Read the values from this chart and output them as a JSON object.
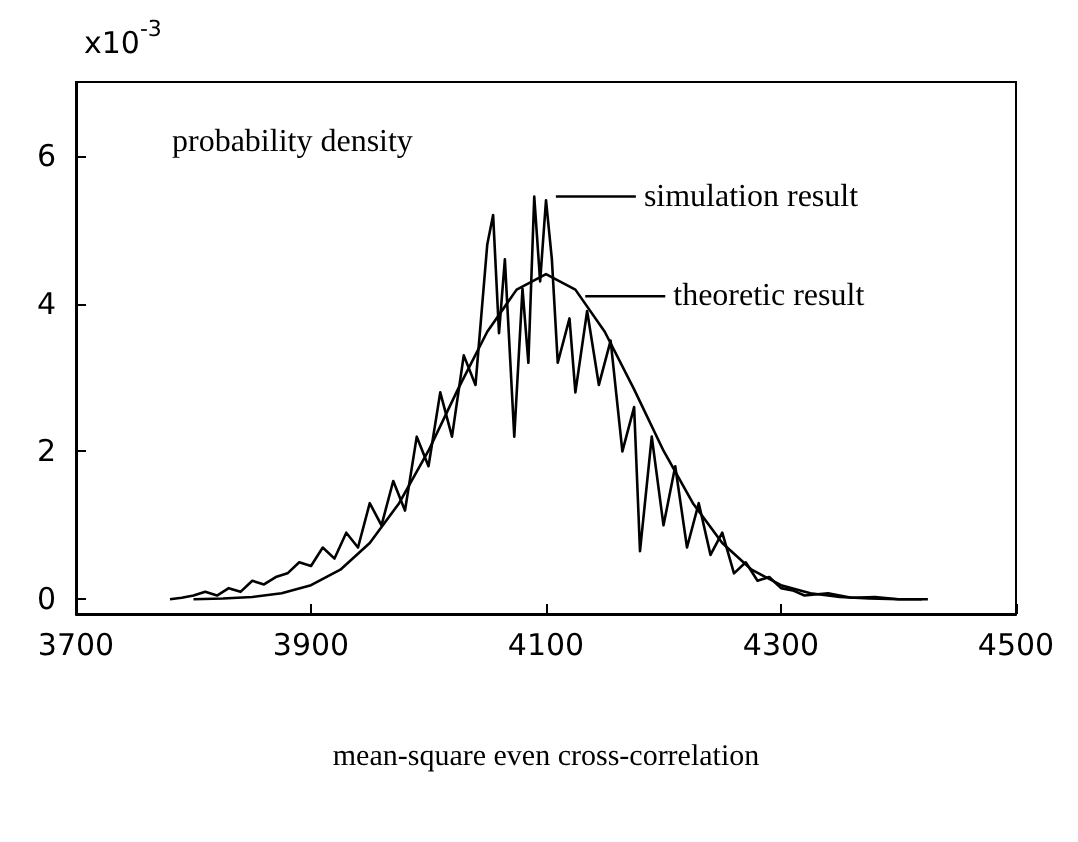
{
  "chart_data": {
    "type": "line",
    "ylabel": "probability density",
    "xlabel": "mean-square even cross-correlation",
    "annotations": [
      "x10$^{-3}$",
      {
        "text": "simulation result",
        "x": 4105,
        "y": 5.45
      },
      {
        "text": "theoretic result",
        "x": 4130,
        "y": 4.1
      }
    ],
    "xlim": [
      3700,
      4500
    ],
    "xticks": [
      3700,
      3900,
      4100,
      4300,
      4500
    ],
    "ylim": [
      -0.2,
      7
    ],
    "yticks": [
      0,
      2,
      4,
      6
    ],
    "grid": false,
    "marker": "none",
    "line_style": "solid",
    "series": [
      {
        "color": "#000000",
        "x": [
          3780,
          3790,
          3800,
          3810,
          3820,
          3830,
          3840,
          3850,
          3860,
          3870,
          3880,
          3890,
          3900,
          3910,
          3920,
          3930,
          3940,
          3950,
          3960,
          3970,
          3980,
          3990,
          4000,
          4010,
          4020,
          4030,
          4040,
          4050,
          4055,
          4060,
          4065,
          4073,
          4080,
          4085,
          4090,
          4095,
          4100,
          4105,
          4110,
          4120,
          4125,
          4135,
          4145,
          4155,
          4165,
          4175,
          4180,
          4190,
          4200,
          4210,
          4220,
          4230,
          4240,
          4250,
          4260,
          4270,
          4280,
          4290,
          4300,
          4310,
          4320,
          4340,
          4360,
          4380,
          4400,
          4420
        ],
        "values": [
          0,
          0.02,
          0.05,
          0.1,
          0.05,
          0.15,
          0.1,
          0.25,
          0.2,
          0.3,
          0.35,
          0.5,
          0.45,
          0.7,
          0.55,
          0.9,
          0.7,
          1.3,
          1.0,
          1.6,
          1.2,
          2.2,
          1.8,
          2.8,
          2.2,
          3.3,
          2.9,
          4.8,
          5.2,
          3.6,
          4.6,
          2.2,
          4.2,
          3.2,
          5.45,
          4.3,
          5.4,
          4.6,
          3.2,
          3.8,
          2.8,
          3.9,
          2.9,
          3.5,
          2.0,
          2.6,
          0.65,
          2.2,
          1.0,
          1.8,
          0.7,
          1.3,
          0.6,
          0.9,
          0.35,
          0.5,
          0.25,
          0.3,
          0.15,
          0.12,
          0.05,
          0.08,
          0.02,
          0.03,
          0,
          0
        ]
      },
      {
        "color": "#000000",
        "x": [
          3800,
          3825,
          3850,
          3875,
          3900,
          3925,
          3950,
          3975,
          4000,
          4025,
          4050,
          4075,
          4100,
          4125,
          4150,
          4175,
          4200,
          4225,
          4250,
          4275,
          4300,
          4325,
          4350,
          4375,
          4400,
          4425
        ],
        "values": [
          0,
          0.01,
          0.03,
          0.08,
          0.19,
          0.4,
          0.76,
          1.3,
          2.01,
          2.84,
          3.62,
          4.19,
          4.4,
          4.19,
          3.62,
          2.84,
          2.01,
          1.3,
          0.76,
          0.4,
          0.19,
          0.08,
          0.03,
          0.01,
          0,
          0
        ]
      }
    ]
  }
}
